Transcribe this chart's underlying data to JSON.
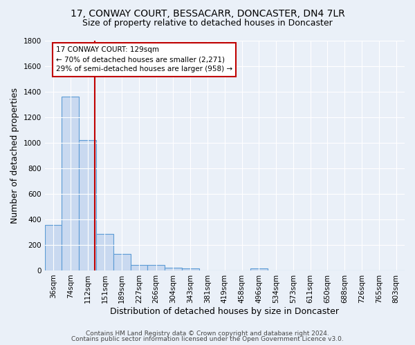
{
  "title": "17, CONWAY COURT, BESSACARR, DONCASTER, DN4 7LR",
  "subtitle": "Size of property relative to detached houses in Doncaster",
  "xlabel": "Distribution of detached houses by size in Doncaster",
  "ylabel": "Number of detached properties",
  "categories": [
    "36sqm",
    "74sqm",
    "112sqm",
    "151sqm",
    "189sqm",
    "227sqm",
    "266sqm",
    "304sqm",
    "343sqm",
    "381sqm",
    "419sqm",
    "458sqm",
    "496sqm",
    "534sqm",
    "573sqm",
    "611sqm",
    "650sqm",
    "688sqm",
    "726sqm",
    "765sqm",
    "803sqm"
  ],
  "values": [
    355,
    1360,
    1020,
    285,
    130,
    42,
    42,
    22,
    18,
    0,
    0,
    0,
    18,
    0,
    0,
    0,
    0,
    0,
    0,
    0,
    0
  ],
  "bar_color": "#c9d9f0",
  "bar_edge_color": "#5b9bd5",
  "bar_linewidth": 0.8,
  "vline_color": "#c00000",
  "annotation_line1": "17 CONWAY COURT: 129sqm",
  "annotation_line2": "← 70% of detached houses are smaller (2,271)",
  "annotation_line3": "29% of semi-detached houses are larger (958) →",
  "annotation_box_color": "#ffffff",
  "annotation_box_edge": "#c00000",
  "ylim": [
    0,
    1800
  ],
  "yticks": [
    0,
    200,
    400,
    600,
    800,
    1000,
    1200,
    1400,
    1600,
    1800
  ],
  "footer_line1": "Contains HM Land Registry data © Crown copyright and database right 2024.",
  "footer_line2": "Contains public sector information licensed under the Open Government Licence v3.0.",
  "bg_color": "#eaf0f8",
  "grid_color": "#ffffff",
  "title_fontsize": 10,
  "subtitle_fontsize": 9,
  "axis_label_fontsize": 9,
  "tick_fontsize": 7.5,
  "footer_fontsize": 6.5,
  "annotation_fontsize": 7.5
}
